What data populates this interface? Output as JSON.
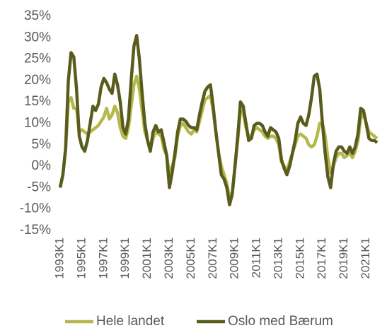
{
  "chart_data": {
    "type": "line",
    "categories": [
      "1993K1",
      null,
      null,
      null,
      null,
      null,
      null,
      null,
      "1995K1",
      null,
      null,
      null,
      null,
      null,
      null,
      null,
      "1997K1",
      null,
      null,
      null,
      null,
      null,
      null,
      null,
      "1999K1",
      null,
      null,
      null,
      null,
      null,
      null,
      null,
      "2001K1",
      null,
      null,
      null,
      null,
      null,
      null,
      null,
      "2003K1",
      null,
      null,
      null,
      null,
      null,
      null,
      null,
      "2005K1",
      null,
      null,
      null,
      null,
      null,
      null,
      null,
      "2007K1",
      null,
      null,
      null,
      null,
      null,
      null,
      null,
      "2009K1",
      null,
      null,
      null,
      null,
      null,
      null,
      null,
      "2011K1",
      null,
      null,
      null,
      null,
      null,
      null,
      null,
      "2013K1",
      null,
      null,
      null,
      null,
      null,
      null,
      null,
      "2015K1",
      null,
      null,
      null,
      null,
      null,
      null,
      null,
      "2017K1",
      null,
      null,
      null,
      null,
      null,
      null,
      null,
      "2019K1",
      null,
      null,
      null,
      null,
      null,
      null,
      null,
      "2021K1",
      null,
      null,
      null,
      null
    ],
    "series": [
      {
        "name": "Hele landet",
        "color": "#b5b84a",
        "values": [
          -5,
          -2,
          4,
          15,
          16,
          13.5,
          13.5,
          8,
          8.5,
          8,
          7.5,
          8,
          8.5,
          9,
          9.5,
          10.5,
          11.5,
          13.5,
          11,
          12,
          14,
          12.5,
          9,
          7,
          6.5,
          9,
          14,
          19,
          21,
          18,
          13,
          8,
          6,
          4,
          6.5,
          8,
          7.5,
          7,
          4,
          2.5,
          -2,
          0,
          2,
          7,
          9.5,
          10,
          9,
          8,
          7.5,
          8.5,
          8,
          10.5,
          13,
          15.5,
          16,
          16.5,
          13,
          8,
          3,
          0,
          -2,
          -4,
          -7.5,
          -6,
          0,
          6,
          13,
          12.5,
          9,
          7,
          7,
          8.5,
          9,
          8.5,
          8,
          7,
          6.5,
          7,
          7,
          6.5,
          5,
          1,
          0,
          -1,
          1,
          3,
          5,
          7,
          7.5,
          7,
          6.5,
          5,
          4.5,
          5,
          7,
          10,
          10,
          7,
          2,
          -1.5,
          0,
          2,
          3,
          3,
          2,
          2.5,
          3,
          2,
          3.5,
          6,
          11,
          12.5,
          10,
          8,
          7.5,
          7,
          6.5
        ]
      },
      {
        "name": "Oslo med Bærum",
        "color": "#5a5c1e",
        "values": [
          -5,
          -2,
          4,
          20,
          26.5,
          25.5,
          18,
          7,
          4.5,
          3.5,
          6,
          10,
          14,
          13,
          14.5,
          18.5,
          20.5,
          19.5,
          18,
          17,
          21.5,
          19,
          15,
          9,
          7.5,
          11,
          20,
          28,
          30.5,
          25,
          17,
          10,
          6,
          3.5,
          8,
          9.5,
          8,
          8.5,
          5.5,
          2.5,
          -5,
          -1.5,
          3,
          8,
          11,
          11,
          10.5,
          9.5,
          9,
          9,
          8.5,
          12,
          15,
          17.5,
          18.5,
          19,
          14,
          8,
          3,
          -2,
          -3,
          -5,
          -9,
          -6.5,
          0,
          7,
          15,
          14,
          10,
          6,
          6.5,
          9.5,
          10,
          10,
          9.5,
          8,
          7,
          9,
          8.5,
          8,
          6.5,
          1.5,
          -0.5,
          -2,
          0,
          3,
          6,
          10,
          11.5,
          10,
          9.5,
          12,
          16,
          21,
          21.5,
          18,
          10,
          3,
          -2.5,
          -5,
          0.5,
          3.5,
          4.5,
          4.5,
          3.5,
          3,
          4.5,
          3,
          4.5,
          7.5,
          13.5,
          13,
          10,
          6.5,
          6,
          6,
          5.5
        ]
      }
    ],
    "ylim": [
      -15,
      35
    ],
    "yticks": [
      {
        "value": -15,
        "label": "-15%"
      },
      {
        "value": -10,
        "label": "-10%"
      },
      {
        "value": -5,
        "label": "-5%"
      },
      {
        "value": 0,
        "label": "0%"
      },
      {
        "value": 5,
        "label": "5%"
      },
      {
        "value": 10,
        "label": "10%"
      },
      {
        "value": 15,
        "label": "15%"
      },
      {
        "value": 20,
        "label": "20%"
      },
      {
        "value": 25,
        "label": "25%"
      },
      {
        "value": 30,
        "label": "30%"
      },
      {
        "value": 35,
        "label": "35%"
      }
    ],
    "grid": false,
    "legend": "bottom"
  }
}
